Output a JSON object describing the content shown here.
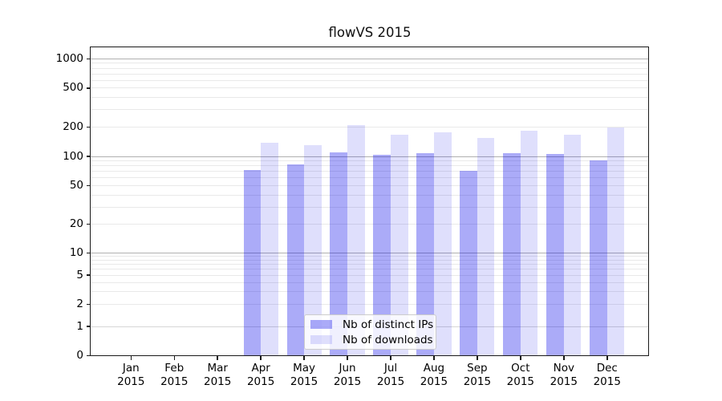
{
  "chart_data": {
    "type": "bar",
    "title": "flowVS 2015",
    "x_year": "2015",
    "x_categories": [
      "Jan",
      "Feb",
      "Mar",
      "Apr",
      "May",
      "Jun",
      "Jul",
      "Aug",
      "Sep",
      "Oct",
      "Nov",
      "Dec"
    ],
    "series": [
      {
        "name": "Nb of distinct IPs",
        "color": "rgba(10,10,235,0.34)",
        "values": [
          0,
          0,
          0,
          72,
          82,
          110,
          103,
          107,
          71,
          107,
          105,
          91
        ]
      },
      {
        "name": "Nb of downloads",
        "color": "rgba(10,10,235,0.13)",
        "values": [
          0,
          0,
          0,
          137,
          130,
          210,
          166,
          178,
          154,
          182,
          166,
          198
        ]
      }
    ],
    "y_axis": {
      "scale": "symlog",
      "tick_labels": [
        "1000",
        "500",
        "200",
        "100",
        "50",
        "20",
        "10",
        "5",
        "2",
        "1",
        "0"
      ],
      "ylim": [
        0,
        1300
      ]
    },
    "grid": "on",
    "legend_position": "lower center"
  },
  "colors": {
    "background": "#ffffff",
    "spine": "#1a1a1a",
    "major_grid": "#b0b0b0",
    "minor_grid": "#e9e9e9",
    "bar_dark": "rgba(10,10,235,0.34)",
    "bar_light": "rgba(10,10,235,0.13)"
  }
}
